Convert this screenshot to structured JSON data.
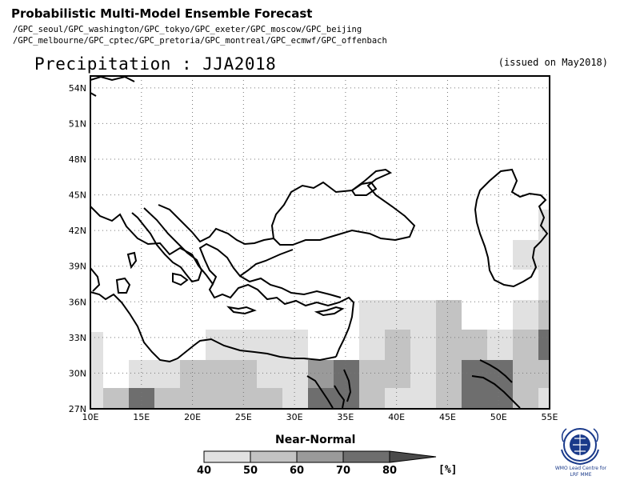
{
  "header": {
    "title": "Probabilistic Multi-Model Ensemble Forecast",
    "members_line1": "/GPC_seoul/GPC_washington/GPC_tokyo/GPC_exeter/GPC_moscow/GPC_beijing",
    "members_line2": "/GPC_melbourne/GPC_cptec/GPC_pretoria/GPC_montreal/GPC_ecmwf/GPC_offenbach",
    "variable_title": "Precipitation : JJA2018",
    "issued": "(issued on May2018)"
  },
  "legend": {
    "title": "Near-Normal",
    "bins": [
      40,
      50,
      60,
      70,
      80
    ],
    "unit": "[%]",
    "colors": [
      "#e1e1e1",
      "#c3c3c3",
      "#9a9a9a",
      "#6e6e6e",
      "#4a4a4a"
    ]
  },
  "map": {
    "lon_range": [
      10,
      55
    ],
    "lat_range": [
      27,
      55
    ],
    "lon_tick_labels": [
      "10E",
      "15E",
      "20E",
      "25E",
      "30E",
      "35E",
      "40E",
      "45E",
      "50E",
      "55E"
    ],
    "lat_tick_labels": [
      "27N",
      "30N",
      "33N",
      "36N",
      "39N",
      "42N",
      "45N",
      "48N",
      "51N",
      "54N"
    ],
    "grid": "dotted"
  },
  "logo": {
    "icon": "wmo-emblem-icon",
    "line1": "WMO Lead Centre for",
    "line2": "LRF MME"
  }
}
